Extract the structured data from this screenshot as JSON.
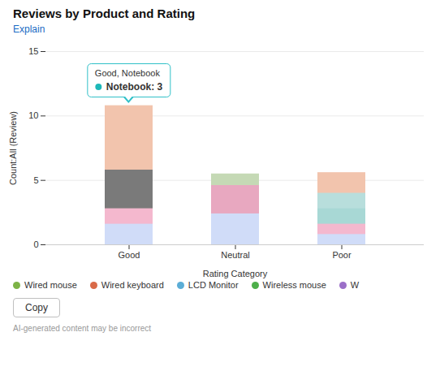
{
  "chart_data": {
    "type": "bar",
    "title": "Reviews by Product and Rating",
    "xlabel": "Rating Category",
    "ylabel": "Count:All (Review)",
    "categories": [
      "Good",
      "Neutral",
      "Poor"
    ],
    "values": [
      [
        10.8,
        5.8,
        2.8,
        1.6
      ],
      [
        5.5,
        4.6,
        3.5,
        2.4
      ],
      [
        5.6,
        4.0,
        2.8,
        1.6,
        0.8
      ]
    ],
    "colors": [
      [
        "#F2C4AD",
        "#7A7A7A",
        "#F4B8CE",
        "#D0DCF8"
      ],
      [
        "#C5D9B5",
        "#E8A8C0",
        "#E8A8C0",
        "#D0DCF8"
      ],
      [
        "#F2C4AD",
        "#B8DEDC",
        "#A8D8D5",
        "#F4B8CE",
        "#D0DCF8"
      ]
    ],
    "stacked": false,
    "ylim": [
      0,
      15
    ],
    "yticks": [
      0,
      5,
      10,
      15
    ],
    "grid": true,
    "legend": "bottom",
    "legend_entries": [
      {
        "label": "Wired mouse",
        "color": "#7DB346"
      },
      {
        "label": "Wired keyboard",
        "color": "#D96A48"
      },
      {
        "label": "LCD Monitor",
        "color": "#5BADD6"
      },
      {
        "label": "Wireless mouse",
        "color": "#4DAF4A"
      },
      {
        "label": "W",
        "color": "#9B6FC8"
      }
    ],
    "tooltip": {
      "x": "Good",
      "title": "Good, Notebook",
      "value": "Notebook: 3",
      "color": "#1DB8B8"
    },
    "link": "Explain",
    "button": "Copy",
    "caption": "AI-generated content may be incorrect"
  }
}
